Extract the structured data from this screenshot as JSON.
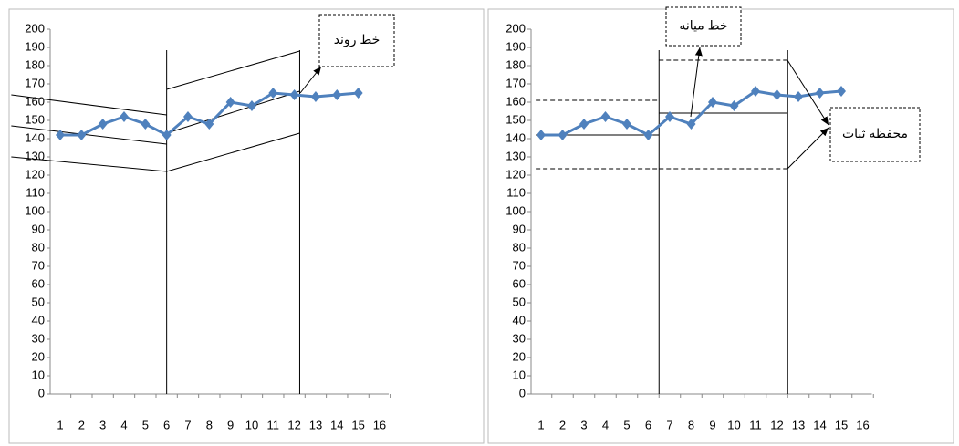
{
  "chart_data": [
    {
      "type": "line",
      "categories": [
        "1",
        "2",
        "3",
        "4",
        "5",
        "6",
        "7",
        "8",
        "9",
        "10",
        "11",
        "12",
        "13",
        "14",
        "15",
        "16"
      ],
      "values": [
        142,
        142,
        148,
        152,
        148,
        142,
        152,
        148,
        160,
        158,
        165,
        164,
        163,
        164,
        165,
        null
      ],
      "color": "#4f81bd",
      "ylim": [
        0,
        200
      ],
      "yticks": [
        0,
        10,
        20,
        30,
        40,
        50,
        60,
        70,
        80,
        90,
        100,
        110,
        120,
        130,
        140,
        150,
        160,
        170,
        180,
        190,
        200
      ],
      "phase_lines": [
        6,
        12.25
      ],
      "lines": [
        {
          "x": [
            -1.3,
            6
          ],
          "y": [
            164,
            153
          ],
          "dashed": false
        },
        {
          "x": [
            -1.3,
            6
          ],
          "y": [
            147,
            137
          ],
          "dashed": false
        },
        {
          "x": [
            -1.3,
            6
          ],
          "y": [
            130,
            122
          ],
          "dashed": false
        },
        {
          "x": [
            6,
            12.25
          ],
          "y": [
            167,
            188
          ],
          "dashed": false
        },
        {
          "x": [
            6,
            12.25
          ],
          "y": [
            143,
            166
          ],
          "dashed": false
        },
        {
          "x": [
            6,
            12.25
          ],
          "y": [
            122,
            143
          ],
          "dashed": false
        }
      ],
      "annotation": "خط روند"
    },
    {
      "type": "line",
      "categories": [
        "1",
        "2",
        "3",
        "4",
        "5",
        "6",
        "7",
        "8",
        "9",
        "10",
        "11",
        "12",
        "13",
        "14",
        "15",
        "16"
      ],
      "values": [
        142,
        142,
        148,
        152,
        148,
        142,
        152,
        148,
        160,
        158,
        166,
        164,
        163,
        165,
        166,
        null
      ],
      "color": "#4f81bd",
      "ylim": [
        0,
        200
      ],
      "yticks": [
        0,
        10,
        20,
        30,
        40,
        50,
        60,
        70,
        80,
        90,
        100,
        110,
        120,
        130,
        140,
        150,
        160,
        170,
        180,
        190,
        200
      ],
      "phase_lines": [
        6.5,
        12.5
      ],
      "lines": [
        {
          "x": [
            0.75,
            6.5
          ],
          "y": [
            142,
            142
          ],
          "dashed": false
        },
        {
          "x": [
            6.5,
            12.5
          ],
          "y": [
            154,
            154
          ],
          "dashed": false
        },
        {
          "x": [
            0.75,
            6.5
          ],
          "y": [
            161,
            161
          ],
          "dashed": true
        },
        {
          "x": [
            0.75,
            6.5
          ],
          "y": [
            123.5,
            123.5
          ],
          "dashed": true
        },
        {
          "x": [
            6.5,
            12.5
          ],
          "y": [
            183,
            183
          ],
          "dashed": true
        },
        {
          "x": [
            6.5,
            12.5
          ],
          "y": [
            123.5,
            123.5
          ],
          "dashed": true
        }
      ],
      "annotations": [
        "خط میانه",
        "محفظه ثبات"
      ]
    }
  ]
}
